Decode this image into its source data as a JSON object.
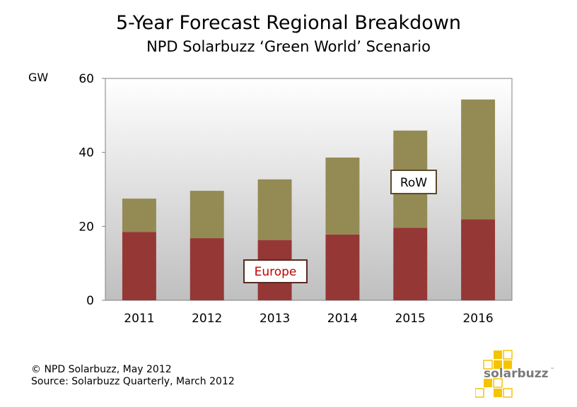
{
  "title": "5-Year Forecast Regional Breakdown",
  "subtitle": "NPD Solarbuzz ‘Green World’ Scenario",
  "footer": {
    "line1": "© NPD Solarbuzz, May 2012",
    "line2": "Source: Solarbuzz Quarterly, March 2012"
  },
  "logo": {
    "text": "solarbuzz",
    "tm": "™"
  },
  "colors": {
    "europe": "#953735",
    "row": "#948A54",
    "europe_label": "#C00000",
    "plot_top": "#FFFFFF",
    "plot_bottom": "#BFBFBF"
  },
  "chart_data": {
    "type": "bar",
    "stacked": true,
    "categories": [
      "2011",
      "2012",
      "2013",
      "2014",
      "2015",
      "2016"
    ],
    "series": [
      {
        "name": "Europe",
        "values": [
          18.5,
          16.8,
          16.3,
          17.8,
          19.6,
          21.9
        ]
      },
      {
        "name": "RoW",
        "values": [
          9.0,
          12.8,
          16.4,
          20.8,
          26.3,
          32.4
        ]
      }
    ],
    "ylabel": "GW",
    "ylim": [
      0,
      60
    ],
    "yticks": [
      0,
      20,
      40,
      60
    ],
    "grid": false,
    "legend": "inline labels"
  }
}
